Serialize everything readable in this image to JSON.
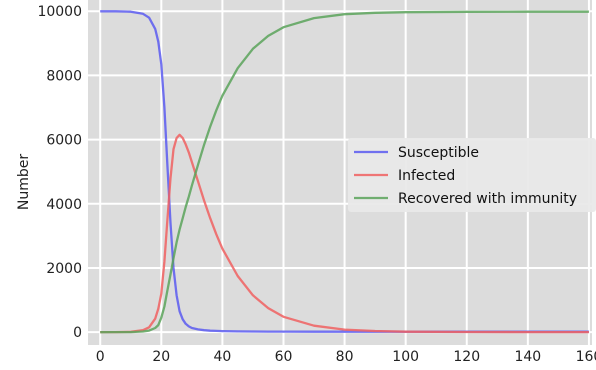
{
  "chart_data": {
    "type": "line",
    "title": "",
    "xlabel": "",
    "ylabel": "Number",
    "xlim": [
      -4,
      161
    ],
    "ylim": [
      -400,
      10350
    ],
    "xticks": [
      0,
      20,
      40,
      60,
      80,
      100,
      120,
      140,
      160
    ],
    "yticks": [
      0,
      2000,
      4000,
      6000,
      8000,
      10000
    ],
    "xtick_labels": [
      "0",
      "20",
      "40",
      "60",
      "80",
      "100",
      "120",
      "140",
      "160"
    ],
    "ytick_labels": [
      "0",
      "2000",
      "4000",
      "6000",
      "8000",
      "10000"
    ],
    "grid": true,
    "legend_position": "center-right",
    "x": [
      0,
      5,
      10,
      14,
      16,
      18,
      19,
      20,
      21,
      22,
      23,
      24,
      25,
      26,
      27,
      28,
      29,
      30,
      32,
      34,
      36,
      38,
      40,
      45,
      50,
      55,
      60,
      70,
      80,
      90,
      100,
      120,
      140,
      160
    ],
    "series": [
      {
        "name": "Susceptible",
        "color": "#5b5bf0",
        "values": [
          9999,
          9997,
          9985,
          9920,
          9800,
          9450,
          9050,
          8350,
          7000,
          5200,
          3400,
          2000,
          1150,
          650,
          400,
          260,
          180,
          130,
          85,
          60,
          45,
          38,
          32,
          25,
          20,
          18,
          16,
          15,
          14,
          14,
          14,
          14,
          14,
          14
        ]
      },
      {
        "name": "Infected",
        "color": "#f06060",
        "values": [
          1,
          3,
          12,
          60,
          150,
          420,
          730,
          1200,
          2200,
          3500,
          4800,
          5700,
          6050,
          6150,
          6050,
          5850,
          5600,
          5300,
          4700,
          4100,
          3550,
          3050,
          2600,
          1750,
          1150,
          750,
          480,
          200,
          80,
          35,
          15,
          5,
          2,
          1
        ]
      },
      {
        "name": "Recovered with immunity",
        "color": "#5aa35a",
        "values": [
          0,
          1,
          3,
          20,
          50,
          130,
          220,
          450,
          800,
          1300,
          1800,
          2300,
          2800,
          3200,
          3550,
          3900,
          4220,
          4570,
          5215,
          5840,
          6405,
          6912,
          7368,
          8225,
          8830,
          9232,
          9504,
          9785,
          9906,
          9951,
          9971,
          9981,
          9984,
          9985
        ]
      }
    ]
  }
}
